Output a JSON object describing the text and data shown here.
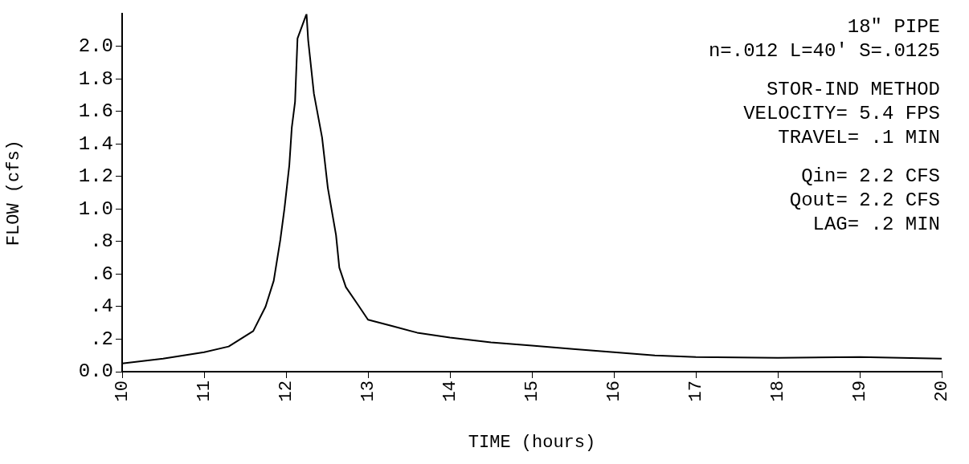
{
  "chart_data": {
    "type": "line",
    "xlabel": "TIME (hours)",
    "ylabel": "FLOW (cfs)",
    "annotations": [
      "18\" PIPE",
      "n=.012 L=40' S=.0125",
      "STOR-IND METHOD",
      "VELOCITY= 5.4 FPS",
      "TRAVEL= .1 MIN",
      "Qin= 2.2 CFS",
      "Qout= 2.2 CFS",
      "LAG= .2 MIN"
    ],
    "x": [
      10,
      10.5,
      11,
      11.3,
      11.6,
      11.75,
      11.85,
      11.93,
      11.98,
      12.04,
      12.07,
      12.11,
      12.14,
      12.25,
      12.27,
      12.34,
      12.44,
      12.51,
      12.61,
      12.65,
      12.73,
      12.88,
      13,
      13.3,
      13.6,
      14,
      14.5,
      15,
      15.5,
      16,
      16.5,
      17,
      18,
      19,
      20
    ],
    "series": [
      {
        "color": "#000000",
        "values": [
          0.05,
          0.08,
          0.12,
          0.155,
          0.25,
          0.4,
          0.56,
          0.81,
          1.0,
          1.27,
          1.5,
          1.66,
          2.05,
          2.2,
          2.04,
          1.71,
          1.44,
          1.13,
          0.84,
          0.64,
          0.52,
          0.41,
          0.32,
          0.28,
          0.24,
          0.21,
          0.18,
          0.16,
          0.14,
          0.12,
          0.1,
          0.09,
          0.085,
          0.09,
          0.08
        ]
      }
    ],
    "xlim": [
      10,
      20
    ],
    "xticks": [
      10,
      11,
      12,
      13,
      14,
      15,
      16,
      17,
      18,
      19,
      20
    ],
    "ylim": [
      0,
      2.2
    ],
    "yticks": [
      {
        "value": 0,
        "label": "0.0"
      },
      {
        "value": 0.2,
        "label": ".2"
      },
      {
        "value": 0.4,
        "label": ".4"
      },
      {
        "value": 0.6,
        "label": ".6"
      },
      {
        "value": 0.8,
        "label": ".8"
      },
      {
        "value": 1.0,
        "label": "1.0"
      },
      1.2,
      1.4,
      1.6,
      1.8,
      {
        "value": 2.0,
        "label": "2.0"
      }
    ],
    "grid": false,
    "legend": false,
    "marker": "none",
    "line_style": "solid"
  }
}
